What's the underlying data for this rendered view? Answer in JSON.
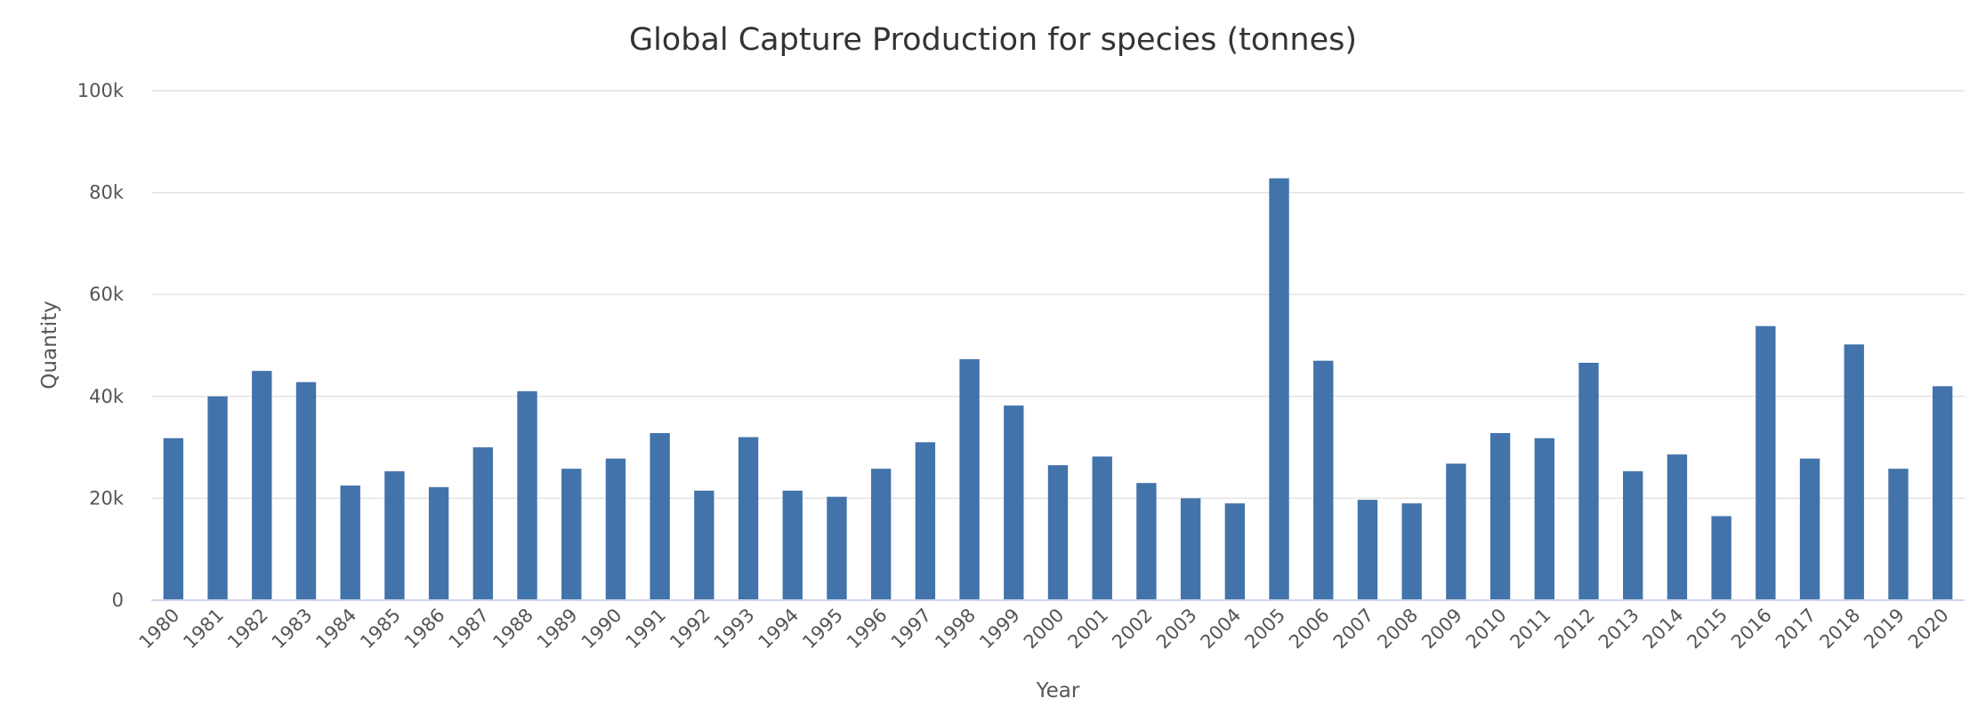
{
  "chart_data": {
    "type": "bar",
    "title": "Global Capture Production for species (tonnes)",
    "xlabel": "Year",
    "ylabel": "Quantity",
    "ylim": [
      0,
      100000
    ],
    "yticks": [
      0,
      20000,
      40000,
      60000,
      80000,
      100000
    ],
    "ytick_labels": [
      "0",
      "20k",
      "40k",
      "60k",
      "80k",
      "100k"
    ],
    "grid": true,
    "color": "#4273aa",
    "categories": [
      "1980",
      "1981",
      "1982",
      "1983",
      "1984",
      "1985",
      "1986",
      "1987",
      "1988",
      "1989",
      "1990",
      "1991",
      "1992",
      "1993",
      "1994",
      "1995",
      "1996",
      "1997",
      "1998",
      "1999",
      "2000",
      "2001",
      "2002",
      "2003",
      "2004",
      "2005",
      "2006",
      "2007",
      "2008",
      "2009",
      "2010",
      "2011",
      "2012",
      "2013",
      "2014",
      "2015",
      "2016",
      "2017",
      "2018",
      "2019",
      "2020"
    ],
    "values": [
      31800,
      40000,
      45000,
      42800,
      22500,
      25300,
      22200,
      30000,
      41000,
      25800,
      27800,
      32800,
      21500,
      32000,
      21500,
      20300,
      25800,
      31000,
      47300,
      38200,
      26500,
      28200,
      23000,
      20000,
      19000,
      82800,
      47000,
      19700,
      19000,
      26800,
      32800,
      31800,
      46600,
      25300,
      28600,
      16500,
      53800,
      27800,
      50200,
      25800,
      42000
    ]
  }
}
